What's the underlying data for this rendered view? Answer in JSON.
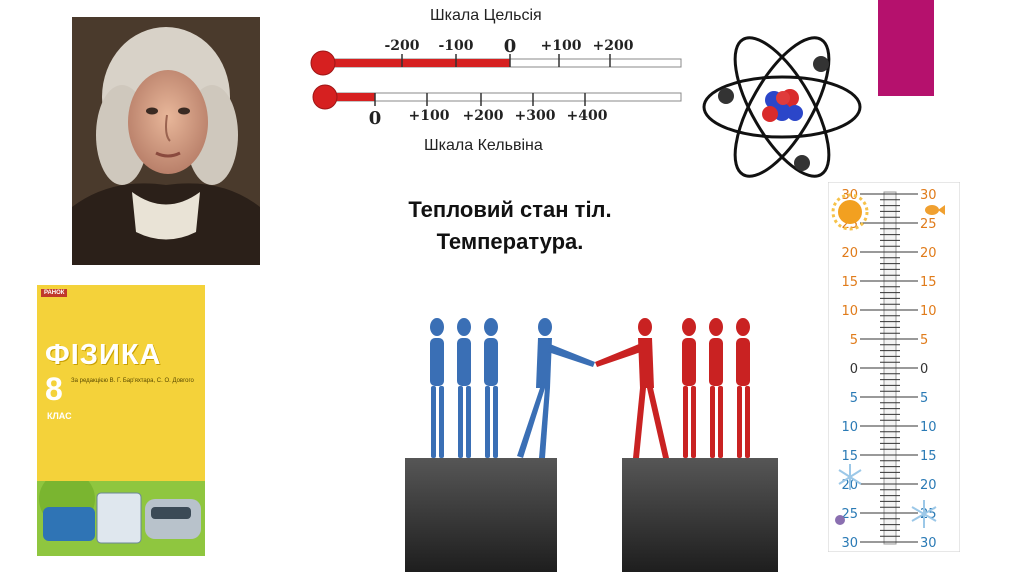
{
  "celsius_scale": {
    "title": "Шкала Цельсія",
    "ticks": [
      "-200",
      "-100",
      "0",
      "+100",
      "+200"
    ]
  },
  "kelvin_scale": {
    "title": "Шкала Кельвіна",
    "ticks": [
      "0",
      "+100",
      "+200",
      "+300",
      "+400"
    ]
  },
  "slide": {
    "title_line1": "Тепловий стан тіл.",
    "title_line2": "Температура."
  },
  "textbook": {
    "title": "ФІЗИКА",
    "grade": "8",
    "grade_label": "КЛАС",
    "authors": "За редакцією В. Г. Бар'яхтара, С. О. Довгого",
    "publisher": "РАНОК"
  },
  "thermometer": {
    "left_labels": [
      "30",
      "25",
      "20",
      "15",
      "10",
      "5",
      "0",
      "5",
      "10",
      "15",
      "20",
      "25",
      "30"
    ],
    "right_labels": [
      "30",
      "25",
      "20",
      "15",
      "10",
      "5",
      "0",
      "5",
      "10",
      "15",
      "20",
      "25",
      "30"
    ]
  },
  "colors": {
    "accent": "#b5116d",
    "thermo_red": "#d62020",
    "warm_label": "#e07b1a",
    "cold_label": "#2a7ab5",
    "blue_figure": "#3a6fb5",
    "red_figure": "#c92222"
  }
}
